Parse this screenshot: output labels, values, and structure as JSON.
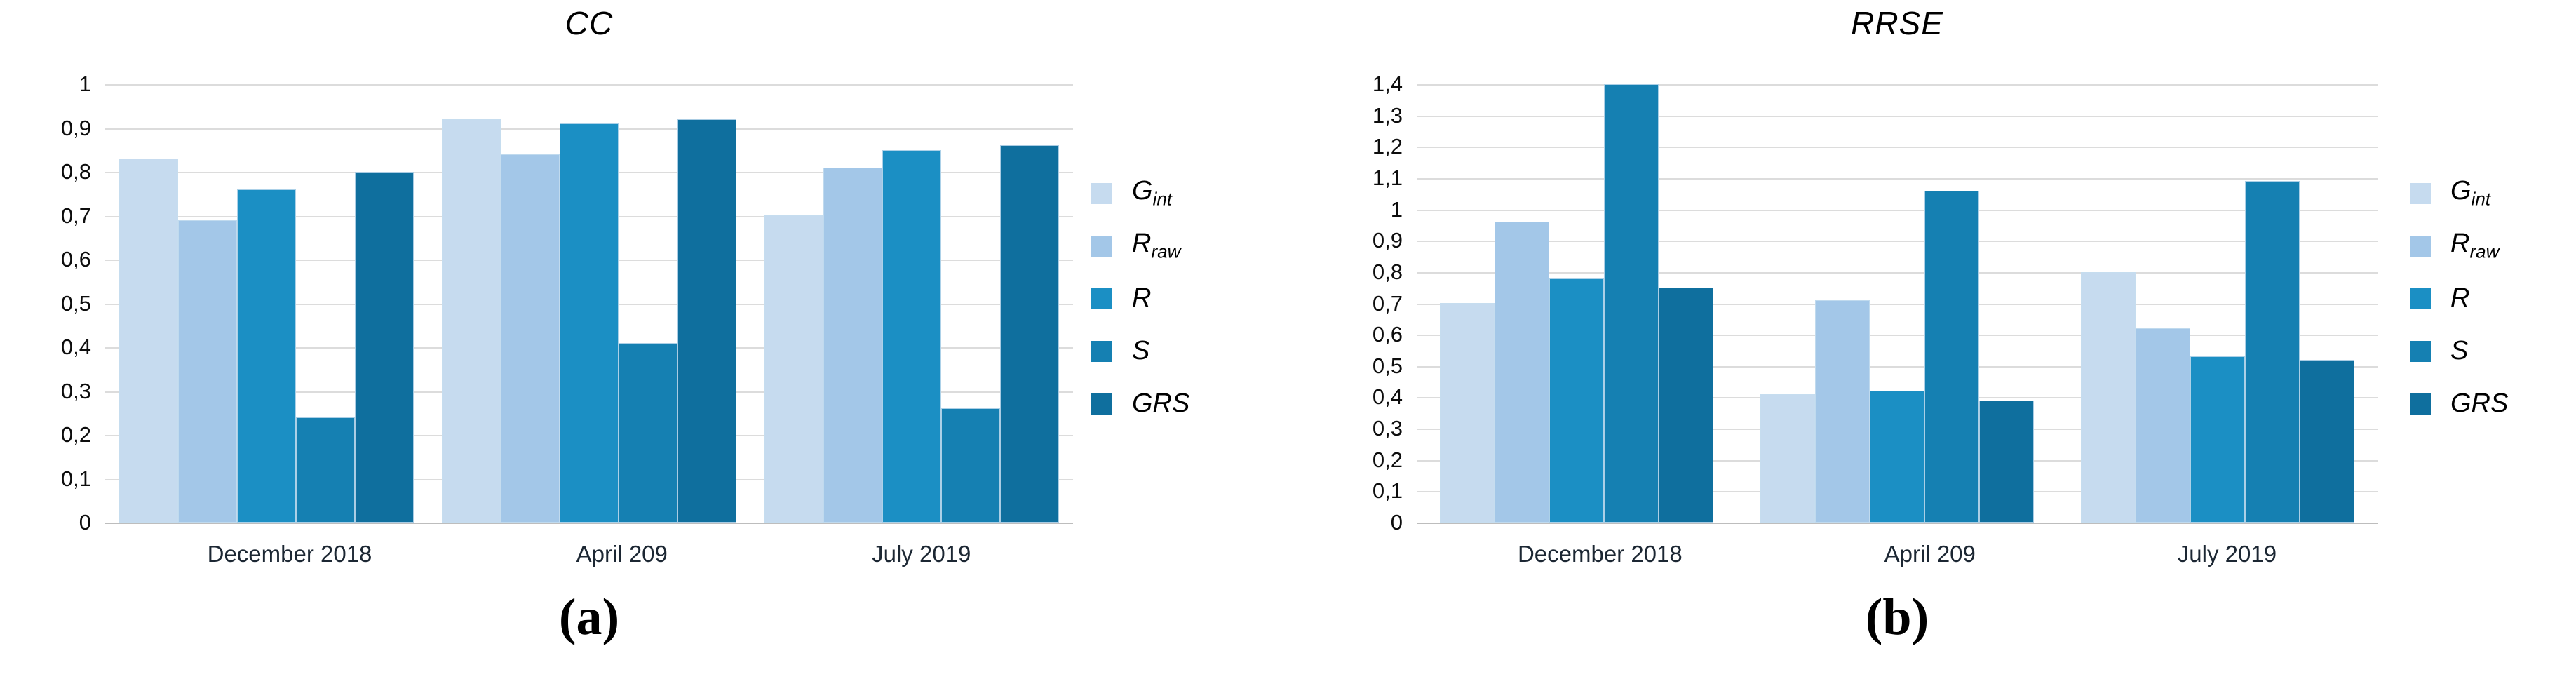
{
  "captions": {
    "a": "(a)",
    "b": "(b)"
  },
  "chart_data": [
    {
      "type": "bar",
      "title": "CC",
      "categories": [
        "December 2018",
        "April 209",
        "July 2019"
      ],
      "ylim": [
        0,
        1.0
      ],
      "ytick_labels": [
        "1",
        "0,9",
        "0,8",
        "0,7",
        "0,6",
        "0,5",
        "0,4",
        "0,3",
        "0,2",
        "0,1",
        "0"
      ],
      "grid": true,
      "legend_position": "right",
      "legend": [
        {
          "main": "G",
          "sub": "int"
        },
        {
          "main": "R",
          "sub": "raw"
        },
        {
          "main": "R",
          "sub": ""
        },
        {
          "main": "S",
          "sub": ""
        },
        {
          "main": "GRS",
          "sub": ""
        }
      ],
      "series": [
        {
          "name": "Gint",
          "color": "#c6dbef",
          "values": [
            0.83,
            0.92,
            0.7
          ]
        },
        {
          "name": "Rraw",
          "color": "#a3c7e8",
          "values": [
            0.69,
            0.84,
            0.81
          ]
        },
        {
          "name": "R",
          "color": "#1b8fc4",
          "values": [
            0.76,
            0.91,
            0.85
          ]
        },
        {
          "name": "S",
          "color": "#1580b2",
          "values": [
            0.24,
            0.41,
            0.26
          ]
        },
        {
          "name": "GRS",
          "color": "#0f6f9e",
          "values": [
            0.8,
            0.92,
            0.86
          ]
        }
      ]
    },
    {
      "type": "bar",
      "title": "RRSE",
      "categories": [
        "December 2018",
        "April 209",
        "July 2019"
      ],
      "ylim": [
        0,
        1.4
      ],
      "ytick_labels": [
        "1,4",
        "1,3",
        "1,2",
        "1,1",
        "1",
        "0,9",
        "0,8",
        "0,7",
        "0,6",
        "0,5",
        "0,4",
        "0,3",
        "0,2",
        "0,1",
        "0"
      ],
      "grid": true,
      "legend_position": "right",
      "legend": [
        {
          "main": "G",
          "sub": "int"
        },
        {
          "main": "R",
          "sub": "raw"
        },
        {
          "main": "R",
          "sub": ""
        },
        {
          "main": "S",
          "sub": ""
        },
        {
          "main": "GRS",
          "sub": ""
        }
      ],
      "series": [
        {
          "name": "Gint",
          "color": "#c6dbef",
          "values": [
            0.7,
            0.41,
            0.8
          ]
        },
        {
          "name": "Rraw",
          "color": "#a3c7e8",
          "values": [
            0.96,
            0.71,
            0.62
          ]
        },
        {
          "name": "R",
          "color": "#1b8fc4",
          "values": [
            0.78,
            0.42,
            0.53
          ]
        },
        {
          "name": "S",
          "color": "#1580b2",
          "values": [
            1.4,
            1.06,
            1.09
          ]
        },
        {
          "name": "GRS",
          "color": "#0f6f9e",
          "values": [
            0.75,
            0.39,
            0.52
          ]
        }
      ]
    }
  ]
}
